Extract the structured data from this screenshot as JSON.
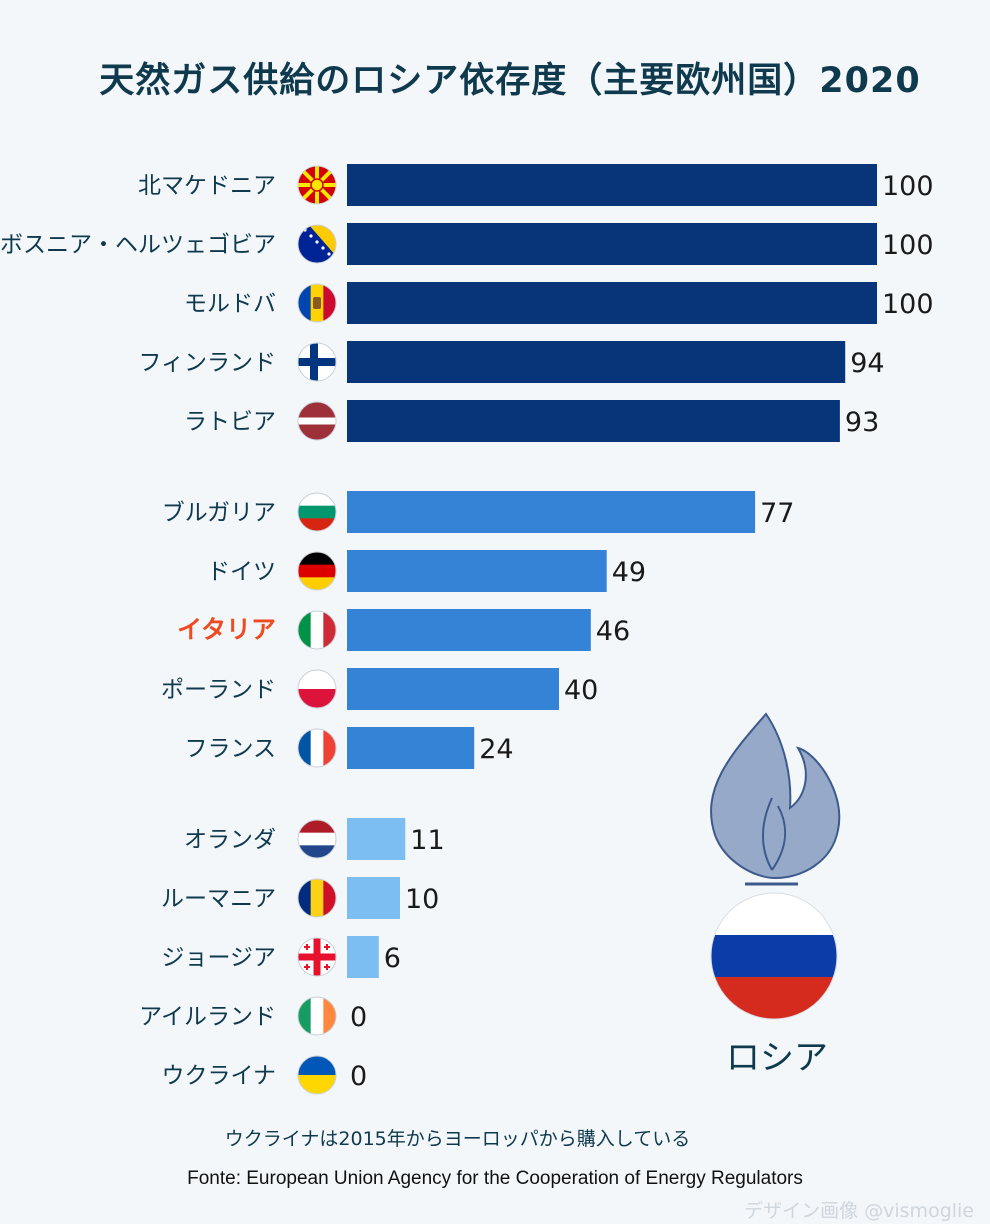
{
  "title": "天然ガス供給のロシア依存度（主要欧州国）2020",
  "chart_data": {
    "type": "bar",
    "orientation": "horizontal",
    "title": "天然ガス供給のロシア依存度（主要欧州国）2020",
    "xlim": [
      0,
      100
    ],
    "grid": false,
    "categories": [
      "北マケドニア",
      "ボスニア・ヘルツェゴビア",
      "モルドバ",
      "フィンランド",
      "ラトビア",
      "ブルガリア",
      "ドイツ",
      "イタリア",
      "ポーランド",
      "フランス",
      "オランダ",
      "ルーマニア",
      "ジョージア",
      "アイルランド",
      "ウクライナ"
    ],
    "values": [
      100,
      100,
      100,
      94,
      93,
      77,
      49,
      46,
      40,
      24,
      11,
      10,
      6,
      0,
      0
    ],
    "value_labels": [
      "100",
      "100",
      "100",
      "94",
      "93",
      "77",
      "49",
      "46",
      "40",
      "24",
      "11",
      "10",
      "6",
      "0",
      "0"
    ],
    "groups": [
      0,
      0,
      0,
      0,
      0,
      1,
      1,
      1,
      1,
      1,
      2,
      2,
      2,
      2,
      2
    ],
    "group_colors": [
      "#08357a",
      "#3583d6",
      "#7dbef2"
    ],
    "highlight_index": 7,
    "highlight_color": "#f04a23",
    "label_color": "#0f3a4e",
    "flag_icons": [
      "north-macedonia-flag-icon",
      "bosnia-flag-icon",
      "moldova-flag-icon",
      "finland-flag-icon",
      "latvia-flag-icon",
      "bulgaria-flag-icon",
      "germany-flag-icon",
      "italy-flag-icon",
      "poland-flag-icon",
      "france-flag-icon",
      "netherlands-flag-icon",
      "romania-flag-icon",
      "georgia-flag-icon",
      "ireland-flag-icon",
      "ukraine-flag-icon"
    ]
  },
  "russia": {
    "label": "ロシア",
    "flame_icon": "gas-flame-icon",
    "flag_icon": "russia-flag-icon"
  },
  "note": "ウクライナは2015年からヨーロッパから購入している",
  "source": "Fonte: European Union Agency for the Cooperation of Energy Regulators",
  "watermark": "デザイン画像 @vismoglie"
}
